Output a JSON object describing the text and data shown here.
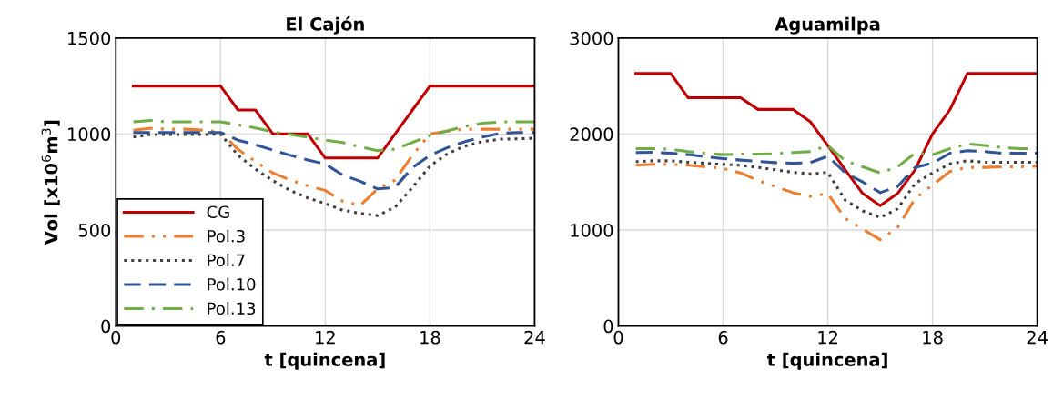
{
  "chart_data": [
    {
      "type": "line",
      "title": "El Cajón",
      "xlabel": "t [quincena]",
      "ylabel": "Vol [x10$^{6}$m$^{3}$]",
      "x": [
        1,
        2,
        3,
        4,
        5,
        6,
        7,
        8,
        9,
        10,
        11,
        12,
        13,
        14,
        15,
        16,
        17,
        18,
        19,
        20,
        21,
        22,
        23,
        24
      ],
      "xlim": [
        0,
        24
      ],
      "xticks": [
        0,
        6,
        12,
        18,
        24
      ],
      "ylim": [
        0,
        1500
      ],
      "yticks": [
        0,
        500,
        1000,
        1500
      ],
      "grid": true,
      "legend": "bottom left",
      "series": [
        {
          "name": "CG",
          "color": "#c00000",
          "line_style": "solid",
          "values": [
            1250,
            1250,
            1250,
            1250,
            1250,
            1250,
            1125,
            1125,
            1000,
            1000,
            1000,
            875,
            875,
            875,
            875,
            1000,
            1125,
            1250,
            1250,
            1250,
            1250,
            1250,
            1250,
            1250
          ]
        },
        {
          "name": "Pol.3",
          "color": "#ed7d31",
          "line_style": "dashdotdot",
          "values": [
            1020,
            1030,
            1025,
            1025,
            1020,
            1010,
            920,
            857,
            797,
            760,
            730,
            706,
            650,
            627,
            714,
            760,
            890,
            1000,
            1015,
            1025,
            1025,
            1025,
            1025,
            1025
          ]
        },
        {
          "name": "Pol.7",
          "color": "#404040",
          "line_style": "dotted",
          "values": [
            984,
            997,
            997,
            997,
            997,
            1000,
            889,
            817,
            757,
            706,
            667,
            638,
            603,
            587,
            575,
            619,
            722,
            833,
            897,
            937,
            960,
            973,
            975,
            978
          ]
        },
        {
          "name": "Pol.10",
          "color": "#2f5597",
          "line_style": "dashed",
          "values": [
            1008,
            1008,
            1008,
            1008,
            1008,
            1008,
            968,
            944,
            916,
            889,
            865,
            844,
            786,
            754,
            714,
            722,
            825,
            889,
            929,
            960,
            984,
            1003,
            1008,
            1008
          ]
        },
        {
          "name": "Pol.13",
          "color": "#70ad47",
          "line_style": "dashdot",
          "values": [
            1063,
            1071,
            1063,
            1063,
            1063,
            1063,
            1048,
            1032,
            1011,
            997,
            984,
            968,
            956,
            933,
            913,
            921,
            956,
            992,
            1016,
            1040,
            1056,
            1063,
            1063,
            1063
          ]
        }
      ]
    },
    {
      "type": "line",
      "title": "Aguamilpa",
      "xlabel": "t [quincena]",
      "x": [
        1,
        2,
        3,
        4,
        5,
        6,
        7,
        8,
        9,
        10,
        11,
        12,
        13,
        14,
        15,
        16,
        17,
        18,
        19,
        20,
        21,
        22,
        23,
        24
      ],
      "xlim": [
        0,
        24
      ],
      "xticks": [
        0,
        6,
        12,
        18,
        24
      ],
      "ylim": [
        0,
        3000
      ],
      "yticks": [
        0,
        1000,
        2000,
        3000
      ],
      "grid": true,
      "series": [
        {
          "color": "#c00000",
          "line_style": "solid",
          "values": [
            2630,
            2630,
            2630,
            2377,
            2377,
            2377,
            2377,
            2256,
            2256,
            2256,
            2127,
            1880,
            1627,
            1380,
            1253,
            1380,
            1627,
            2000,
            2253,
            2630,
            2630,
            2630,
            2630,
            2630
          ]
        },
        {
          "color": "#ed7d31",
          "line_style": "dashdotdot",
          "values": [
            1674,
            1684,
            1684,
            1674,
            1658,
            1642,
            1595,
            1516,
            1452,
            1389,
            1351,
            1380,
            1120,
            1009,
            899,
            1025,
            1326,
            1468,
            1611,
            1652,
            1652,
            1658,
            1658,
            1665
          ]
        },
        {
          "color": "#404040",
          "line_style": "dotted",
          "values": [
            1712,
            1721,
            1721,
            1706,
            1696,
            1684,
            1674,
            1652,
            1627,
            1601,
            1585,
            1601,
            1310,
            1199,
            1130,
            1221,
            1484,
            1595,
            1690,
            1721,
            1706,
            1706,
            1706,
            1706
          ]
        },
        {
          "color": "#2f5597",
          "line_style": "dashed",
          "values": [
            1807,
            1810,
            1800,
            1785,
            1763,
            1744,
            1728,
            1715,
            1702,
            1696,
            1702,
            1769,
            1595,
            1500,
            1389,
            1452,
            1652,
            1696,
            1800,
            1826,
            1816,
            1800,
            1800,
            1800
          ]
        },
        {
          "color": "#70ad47",
          "line_style": "dashdot",
          "values": [
            1848,
            1848,
            1842,
            1816,
            1800,
            1785,
            1790,
            1790,
            1794,
            1807,
            1816,
            1880,
            1721,
            1658,
            1595,
            1658,
            1800,
            1785,
            1848,
            1896,
            1880,
            1858,
            1848,
            1848
          ]
        }
      ]
    }
  ]
}
